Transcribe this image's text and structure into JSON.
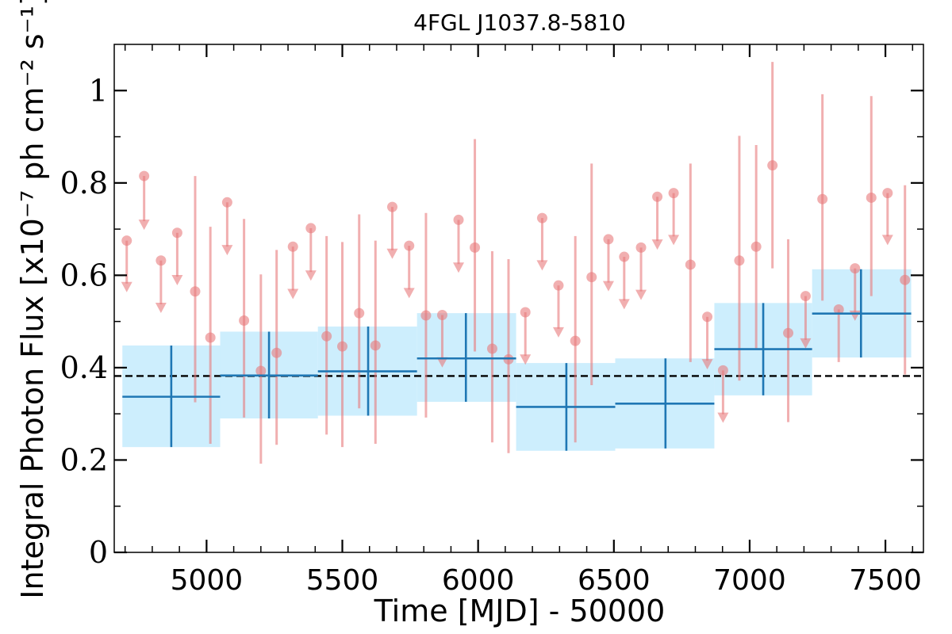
{
  "chart_data": {
    "type": "scatter",
    "title": "4FGL J1037.8-5810",
    "xlabel": "Time [MJD] - 50000",
    "ylabel": "Integral Photon Flux [x10⁻⁷ ph cm⁻² s⁻¹]",
    "xlim": [
      4660,
      7640
    ],
    "ylim": [
      0,
      1.1
    ],
    "xticks": [
      5000,
      5500,
      6000,
      6500,
      7000,
      7500
    ],
    "xtick_labels": [
      "5000",
      "5500",
      "6000",
      "6500",
      "7000",
      "7500"
    ],
    "yticks": [
      0,
      0.2,
      0.4,
      0.6,
      0.8,
      1
    ],
    "ytick_labels": [
      "0",
      "0.2",
      "0.4",
      "0.6",
      "0.8",
      "1"
    ],
    "mean_flux": 0.382,
    "colors": {
      "points": "#e8797b",
      "points_alpha": 0.6,
      "bins_line": "#1f77b4",
      "bins_band": "#cdeefd",
      "mean_line": "#000000"
    },
    "fine_bins": {
      "measurements": [
        {
          "x": 4958,
          "y": 0.565,
          "ylo": 0.325,
          "yhi": 0.815
        },
        {
          "x": 5014,
          "y": 0.465,
          "ylo": 0.235,
          "yhi": 0.705
        },
        {
          "x": 5138,
          "y": 0.502,
          "ylo": 0.292,
          "yhi": 0.722
        },
        {
          "x": 5200,
          "y": 0.393,
          "ylo": 0.192,
          "yhi": 0.602
        },
        {
          "x": 5258,
          "y": 0.432,
          "ylo": 0.233,
          "yhi": 0.655
        },
        {
          "x": 5442,
          "y": 0.468,
          "ylo": 0.255,
          "yhi": 0.685
        },
        {
          "x": 5500,
          "y": 0.446,
          "ylo": 0.228,
          "yhi": 0.672
        },
        {
          "x": 5562,
          "y": 0.518,
          "ylo": 0.312,
          "yhi": 0.732
        },
        {
          "x": 5622,
          "y": 0.448,
          "ylo": 0.235,
          "yhi": 0.675
        },
        {
          "x": 5808,
          "y": 0.513,
          "ylo": 0.292,
          "yhi": 0.735
        },
        {
          "x": 5988,
          "y": 0.66,
          "ylo": 0.435,
          "yhi": 0.895
        },
        {
          "x": 6052,
          "y": 0.441,
          "ylo": 0.238,
          "yhi": 0.652
        },
        {
          "x": 6112,
          "y": 0.418,
          "ylo": 0.215,
          "yhi": 0.635
        },
        {
          "x": 6358,
          "y": 0.458,
          "ylo": 0.238,
          "yhi": 0.685
        },
        {
          "x": 6418,
          "y": 0.596,
          "ylo": 0.362,
          "yhi": 0.842
        },
        {
          "x": 6782,
          "y": 0.623,
          "ylo": 0.412,
          "yhi": 0.842
        },
        {
          "x": 6962,
          "y": 0.632,
          "ylo": 0.372,
          "yhi": 0.902
        },
        {
          "x": 7024,
          "y": 0.662,
          "ylo": 0.442,
          "yhi": 0.882
        },
        {
          "x": 7084,
          "y": 0.838,
          "ylo": 0.615,
          "yhi": 1.062
        },
        {
          "x": 7142,
          "y": 0.475,
          "ylo": 0.282,
          "yhi": 0.678
        },
        {
          "x": 7268,
          "y": 0.765,
          "ylo": 0.545,
          "yhi": 0.992
        },
        {
          "x": 7328,
          "y": 0.526,
          "ylo": 0.412,
          "yhi": 0.526
        },
        {
          "x": 7448,
          "y": 0.768,
          "ylo": 0.555,
          "yhi": 0.988
        },
        {
          "x": 7572,
          "y": 0.59,
          "ylo": 0.385,
          "yhi": 0.795
        }
      ],
      "upper_limits": [
        {
          "x": 4706,
          "y": 0.675,
          "arrow_to": 0.565
        },
        {
          "x": 4770,
          "y": 0.815,
          "arrow_to": 0.7
        },
        {
          "x": 4832,
          "y": 0.632,
          "arrow_to": 0.52
        },
        {
          "x": 4892,
          "y": 0.692,
          "arrow_to": 0.58
        },
        {
          "x": 5076,
          "y": 0.758,
          "arrow_to": 0.645
        },
        {
          "x": 5318,
          "y": 0.662,
          "arrow_to": 0.55
        },
        {
          "x": 5384,
          "y": 0.702,
          "arrow_to": 0.59
        },
        {
          "x": 5684,
          "y": 0.748,
          "arrow_to": 0.637
        },
        {
          "x": 5746,
          "y": 0.664,
          "arrow_to": 0.552
        },
        {
          "x": 5868,
          "y": 0.514,
          "arrow_to": 0.402
        },
        {
          "x": 5928,
          "y": 0.72,
          "arrow_to": 0.607
        },
        {
          "x": 6174,
          "y": 0.52,
          "arrow_to": 0.408
        },
        {
          "x": 6236,
          "y": 0.724,
          "arrow_to": 0.612
        },
        {
          "x": 6296,
          "y": 0.578,
          "arrow_to": 0.467
        },
        {
          "x": 6480,
          "y": 0.678,
          "arrow_to": 0.567
        },
        {
          "x": 6538,
          "y": 0.64,
          "arrow_to": 0.528
        },
        {
          "x": 6600,
          "y": 0.66,
          "arrow_to": 0.548
        },
        {
          "x": 6660,
          "y": 0.77,
          "arrow_to": 0.657
        },
        {
          "x": 6720,
          "y": 0.778,
          "arrow_to": 0.667
        },
        {
          "x": 6844,
          "y": 0.51,
          "arrow_to": 0.398
        },
        {
          "x": 6902,
          "y": 0.394,
          "arrow_to": 0.282
        },
        {
          "x": 7206,
          "y": 0.555,
          "arrow_to": 0.443
        },
        {
          "x": 7388,
          "y": 0.615,
          "arrow_to": 0.503
        },
        {
          "x": 7508,
          "y": 0.778,
          "arrow_to": 0.667
        }
      ]
    },
    "coarse_bins": [
      {
        "x0": 4690,
        "x1": 5050,
        "xc": 4870,
        "y": 0.337,
        "ylo": 0.228,
        "yhi": 0.448
      },
      {
        "x0": 5050,
        "x1": 5410,
        "xc": 5230,
        "y": 0.383,
        "ylo": 0.29,
        "yhi": 0.478
      },
      {
        "x0": 5410,
        "x1": 5775,
        "xc": 5595,
        "y": 0.392,
        "ylo": 0.296,
        "yhi": 0.489
      },
      {
        "x0": 5775,
        "x1": 6140,
        "xc": 5955,
        "y": 0.42,
        "ylo": 0.326,
        "yhi": 0.518
      },
      {
        "x0": 6140,
        "x1": 6505,
        "xc": 6325,
        "y": 0.315,
        "ylo": 0.22,
        "yhi": 0.41
      },
      {
        "x0": 6505,
        "x1": 6870,
        "xc": 6690,
        "y": 0.322,
        "ylo": 0.225,
        "yhi": 0.42
      },
      {
        "x0": 6870,
        "x1": 7230,
        "xc": 7050,
        "y": 0.44,
        "ylo": 0.34,
        "yhi": 0.54
      },
      {
        "x0": 7230,
        "x1": 7595,
        "xc": 7410,
        "y": 0.517,
        "ylo": 0.422,
        "yhi": 0.613
      }
    ]
  }
}
